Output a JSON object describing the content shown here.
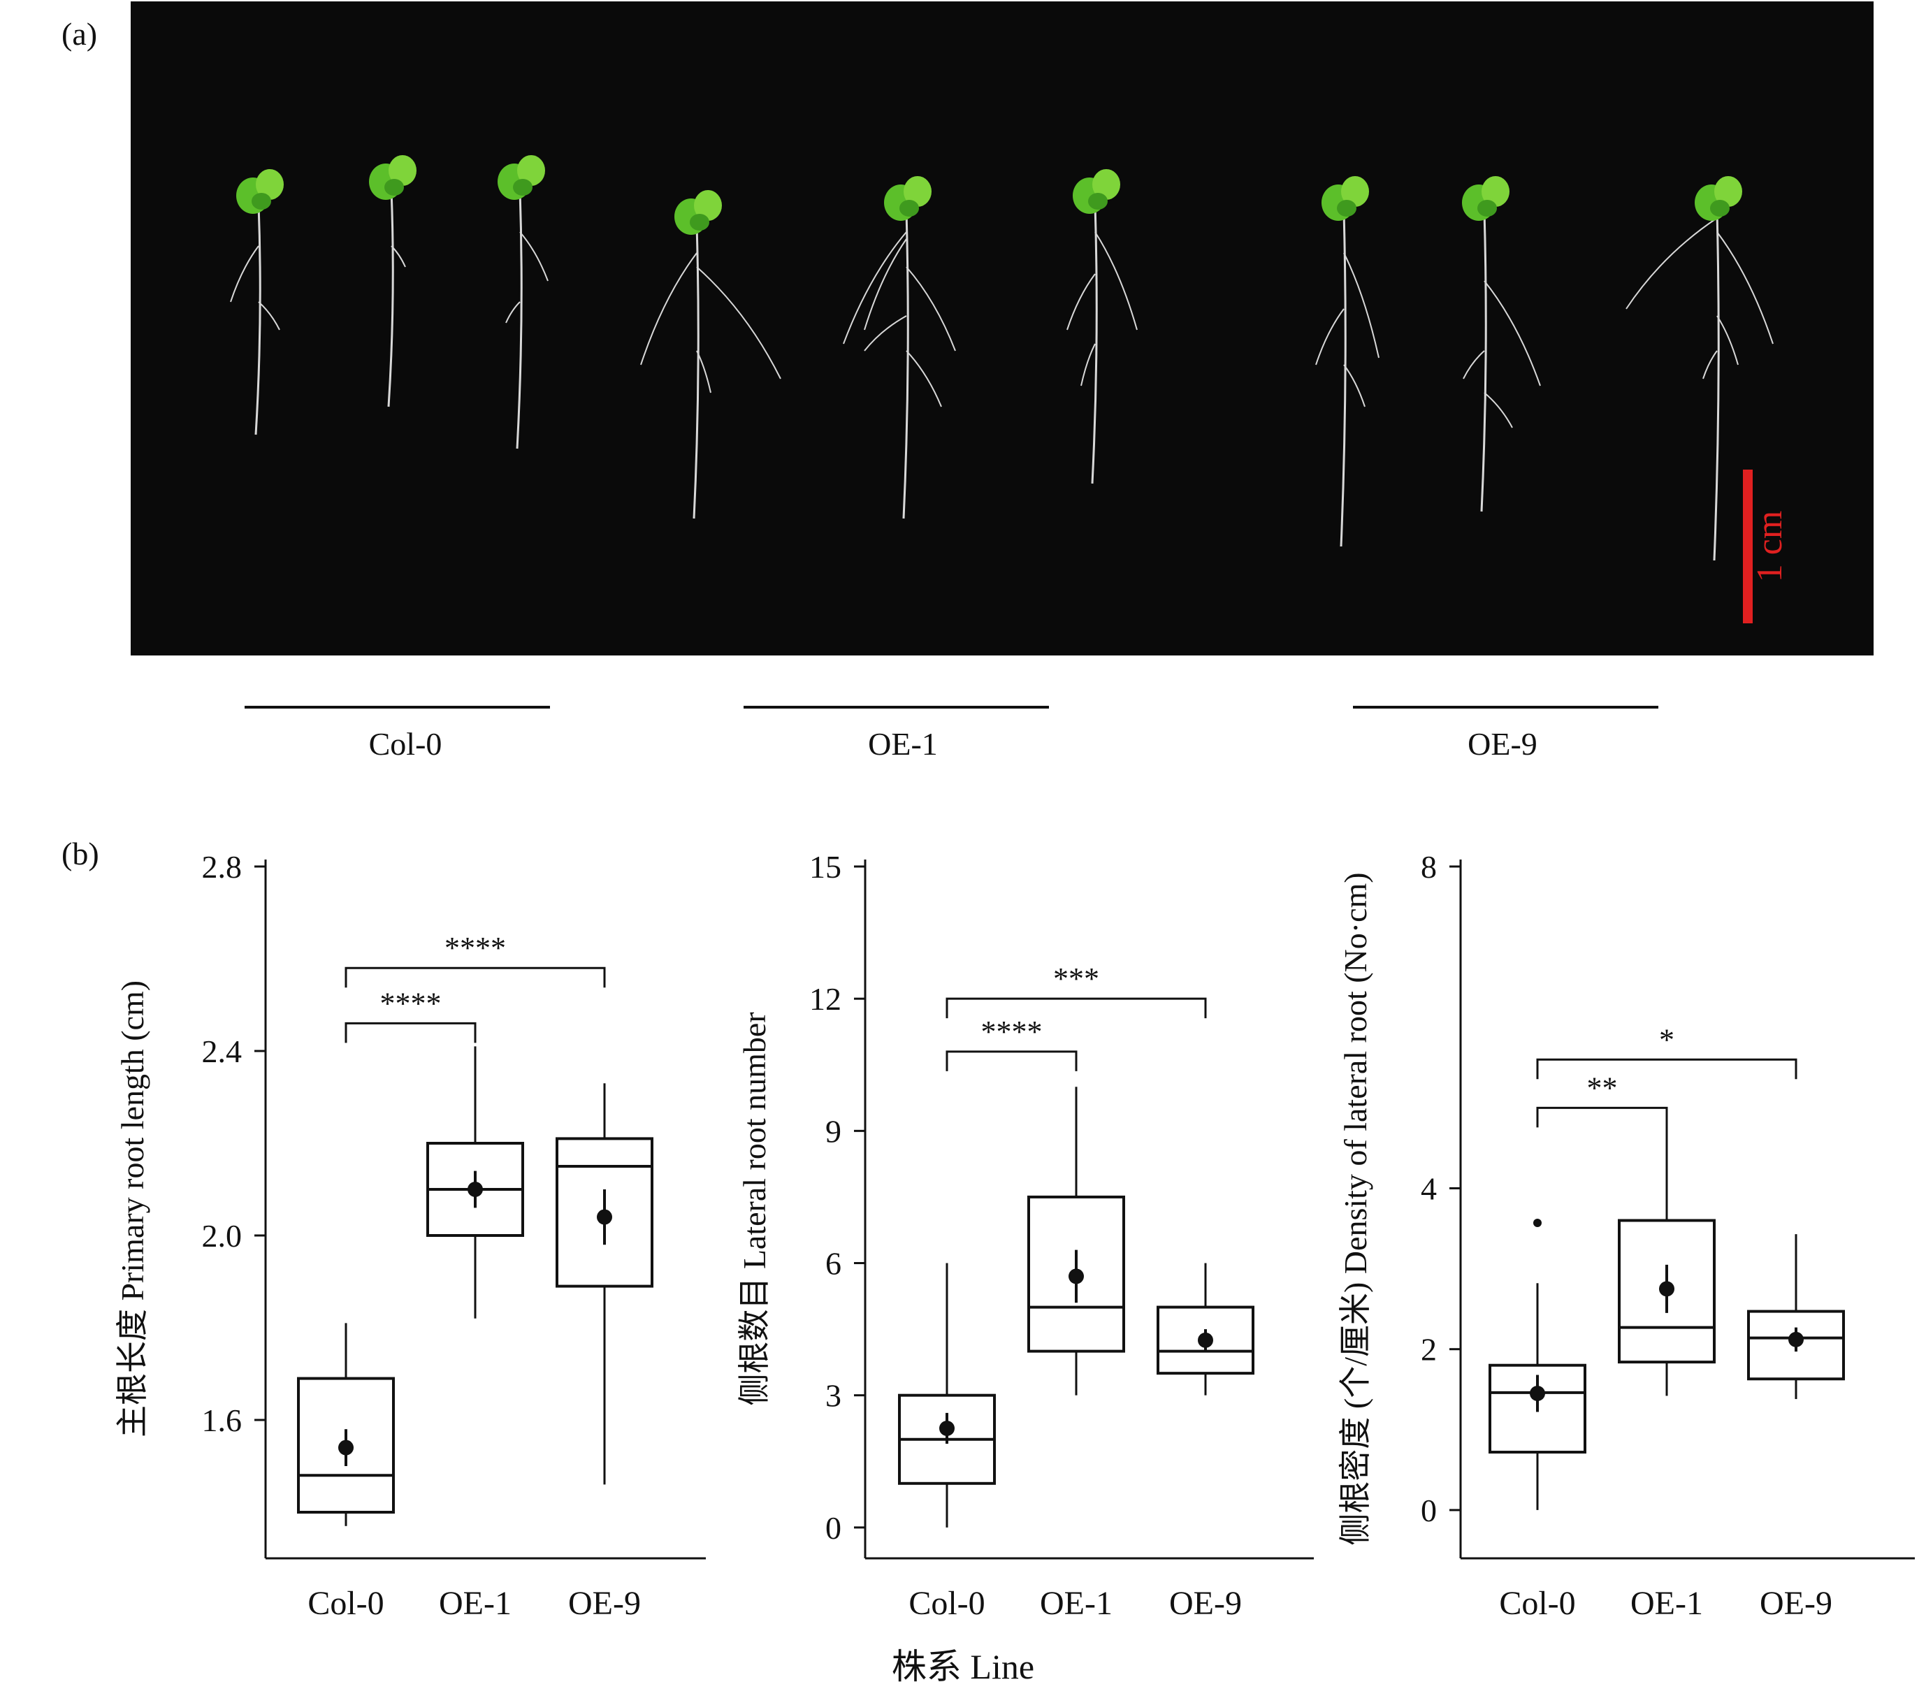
{
  "panel_a_label": "(a)",
  "panel_b_label": "(b)",
  "scale_bar_label": "1 cm",
  "groups": [
    "Col-0",
    "OE-1",
    "OE-9"
  ],
  "x_axis_title": "株系 Line",
  "colors": {
    "plant_leaf": "#5cbf2a",
    "root": "#d8d8d8",
    "scale_bar": "#e02020",
    "photo_bg": "#0a0a0a"
  },
  "chart_data": [
    {
      "type": "box",
      "ylabel": "主根长度 Primary root length (cm)",
      "ylim": [
        1.3,
        2.8
      ],
      "yticks": [
        1.6,
        2.0,
        2.4,
        2.8
      ],
      "tick_decimals": 1,
      "categories": [
        "Col-0",
        "OE-1",
        "OE-9"
      ],
      "boxes": [
        {
          "whisker_low": 1.37,
          "q1": 1.4,
          "median": 1.48,
          "q3": 1.69,
          "whisker_high": 1.81,
          "mean": 1.54,
          "mean_err_low": 1.5,
          "mean_err_high": 1.58,
          "outliers": []
        },
        {
          "whisker_low": 1.82,
          "q1": 2.0,
          "median": 2.1,
          "q3": 2.2,
          "whisker_high": 2.41,
          "mean": 2.1,
          "mean_err_low": 2.06,
          "mean_err_high": 2.14,
          "outliers": []
        },
        {
          "whisker_low": 1.46,
          "q1": 1.89,
          "median": 2.15,
          "q3": 2.21,
          "whisker_high": 2.33,
          "mean": 2.04,
          "mean_err_low": 1.98,
          "mean_err_high": 2.1,
          "outliers": []
        }
      ],
      "significance": [
        {
          "from": 0,
          "to": 1,
          "label": "****",
          "y": 2.46
        },
        {
          "from": 0,
          "to": 2,
          "label": "****",
          "y": 2.58
        }
      ]
    },
    {
      "type": "box",
      "ylabel": "侧根数目 Lateral root number",
      "ylim": [
        -0.7,
        15
      ],
      "yticks": [
        0,
        3,
        6,
        9,
        12,
        15
      ],
      "tick_decimals": 0,
      "categories": [
        "Col-0",
        "OE-1",
        "OE-9"
      ],
      "boxes": [
        {
          "whisker_low": 0,
          "q1": 1,
          "median": 2,
          "q3": 3,
          "whisker_high": 6,
          "mean": 2.25,
          "mean_err_low": 1.9,
          "mean_err_high": 2.6,
          "outliers": []
        },
        {
          "whisker_low": 3,
          "q1": 4,
          "median": 5,
          "q3": 7.5,
          "whisker_high": 10,
          "mean": 5.7,
          "mean_err_low": 5.1,
          "mean_err_high": 6.3,
          "outliers": []
        },
        {
          "whisker_low": 3,
          "q1": 3.5,
          "median": 4,
          "q3": 5,
          "whisker_high": 6,
          "mean": 4.25,
          "mean_err_low": 4.0,
          "mean_err_high": 4.5,
          "outliers": []
        }
      ],
      "significance": [
        {
          "from": 0,
          "to": 1,
          "label": "****",
          "y": 10.8
        },
        {
          "from": 0,
          "to": 2,
          "label": "***",
          "y": 12.0
        }
      ]
    },
    {
      "type": "box",
      "ylabel": "侧根密度 (个/厘米) Density of lateral root (No·cm)",
      "ylim": [
        -0.6,
        8
      ],
      "yticks": [
        0,
        2,
        4,
        8
      ],
      "tick_decimals": 0,
      "categories": [
        "Col-0",
        "OE-1",
        "OE-9"
      ],
      "boxes": [
        {
          "whisker_low": 0,
          "q1": 0.72,
          "median": 1.46,
          "q3": 1.8,
          "whisker_high": 2.82,
          "mean": 1.45,
          "mean_err_low": 1.22,
          "mean_err_high": 1.68,
          "outliers": [
            3.57
          ]
        },
        {
          "whisker_low": 1.42,
          "q1": 1.84,
          "median": 2.27,
          "q3": 3.6,
          "whisker_high": 4.76,
          "mean": 2.75,
          "mean_err_low": 2.45,
          "mean_err_high": 3.05,
          "outliers": []
        },
        {
          "whisker_low": 1.38,
          "q1": 1.63,
          "median": 2.14,
          "q3": 2.47,
          "whisker_high": 3.43,
          "mean": 2.12,
          "mean_err_low": 1.97,
          "mean_err_high": 2.27,
          "outliers": []
        }
      ],
      "significance": [
        {
          "from": 0,
          "to": 1,
          "label": "**",
          "y": 5.0
        },
        {
          "from": 0,
          "to": 2,
          "label": "*",
          "y": 5.6
        }
      ]
    }
  ]
}
